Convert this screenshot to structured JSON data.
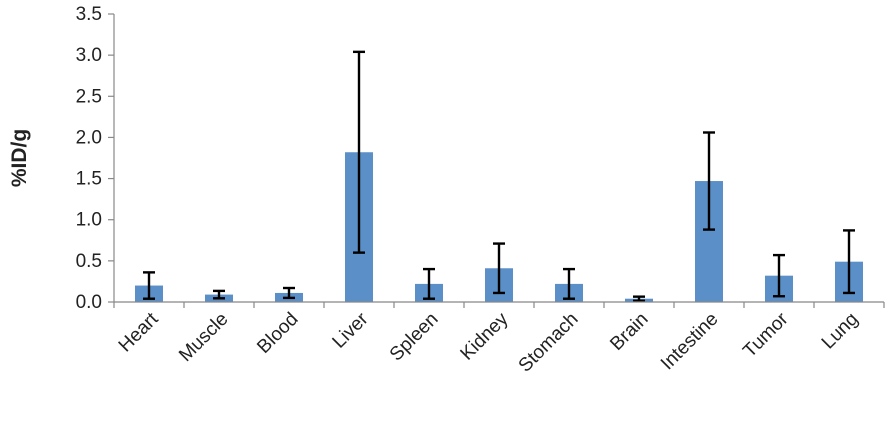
{
  "chart_data": {
    "type": "bar",
    "title": "",
    "xlabel": "",
    "ylabel": "%ID/g",
    "ylim": [
      0,
      3.5
    ],
    "yticks": [
      "0.0",
      "0.5",
      "1.0",
      "1.5",
      "2.0",
      "2.5",
      "3.0",
      "3.5"
    ],
    "grid": false,
    "categories": [
      "Heart",
      "Muscle",
      "Blood",
      "Liver",
      "Spleen",
      "Kidney",
      "Stomach",
      "Brain",
      "Intestine",
      "Tumor",
      "Lung"
    ],
    "series": [
      {
        "values": [
          0.2,
          0.09,
          0.11,
          1.82,
          0.22,
          0.41,
          0.22,
          0.04,
          1.47,
          0.32,
          0.49
        ],
        "error": [
          0.16,
          0.045,
          0.06,
          1.22,
          0.18,
          0.3,
          0.18,
          0.025,
          0.59,
          0.25,
          0.38
        ],
        "color": "#5b8fc7"
      }
    ]
  }
}
